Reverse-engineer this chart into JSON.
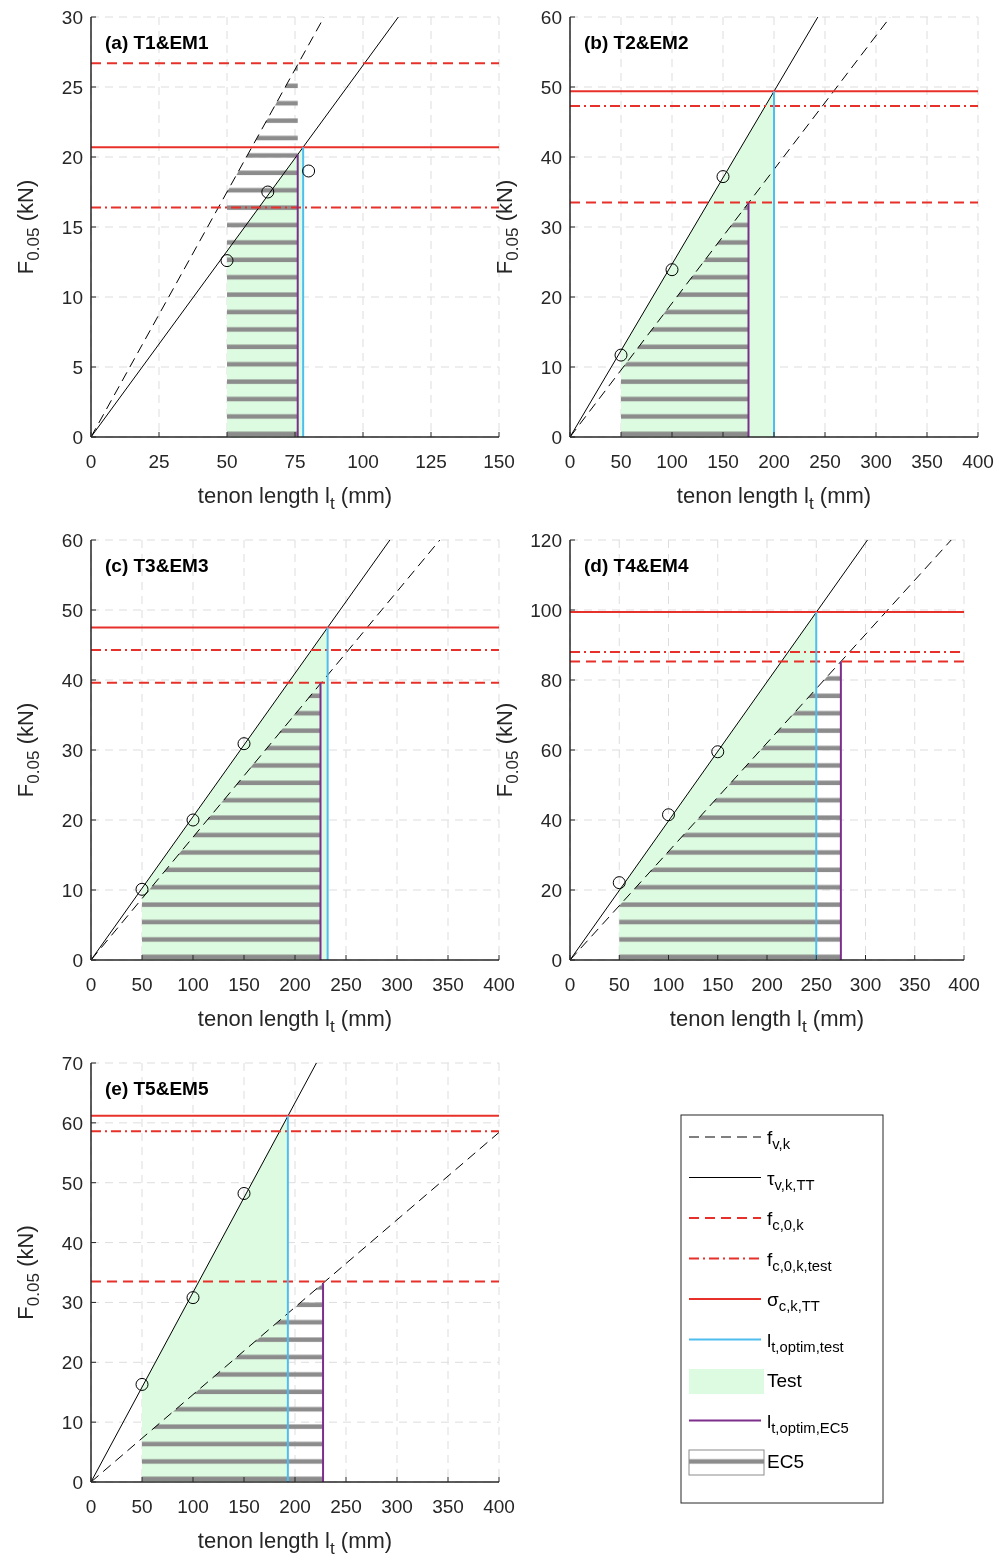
{
  "chart_data": [
    {
      "type": "line",
      "title": "(a) T1&EM1",
      "xlabel": "tenon length l$_{t}$ (mm)",
      "ylabel": "F$_{0.05}$ (kN)",
      "xlim": [
        0,
        150
      ],
      "xticks": [
        0,
        25,
        50,
        75,
        100,
        125,
        150
      ],
      "ylim": [
        0,
        30
      ],
      "yticks": [
        0,
        5,
        10,
        15,
        20,
        25,
        30
      ],
      "grid": true,
      "legend": false,
      "series": [
        {
          "color": "#000000",
          "line_style": "dashed",
          "x": [
            0,
            85.7
          ],
          "values": [
            0,
            30
          ]
        },
        {
          "color": "#000000",
          "line_style": "solid",
          "x": [
            0,
            113
          ],
          "values": [
            0,
            30
          ]
        },
        {
          "color": "#e8302a",
          "line_style": "dashed",
          "x": [
            0,
            150
          ],
          "values": [
            26.7,
            26.7
          ]
        },
        {
          "color": "#e8302a",
          "line_style": "dashdot",
          "x": [
            0,
            150
          ],
          "values": [
            16.4,
            16.4
          ]
        },
        {
          "color": "#e8302a",
          "line_style": "solid",
          "x": [
            0,
            150
          ],
          "values": [
            20.7,
            20.7
          ]
        },
        {
          "color": "#4dbeee",
          "line_style": "solid",
          "x": [
            78,
            78
          ],
          "values": [
            0,
            20.7
          ]
        },
        {
          "type": "area",
          "color": "#dcfbe0",
          "x": [
            50,
            78
          ],
          "values": [
            13.3,
            20.7
          ]
        },
        {
          "color": "#7e2f8e",
          "line_style": "solid",
          "x": [
            76,
            76
          ],
          "values": [
            0,
            20.2
          ]
        },
        {
          "type": "area",
          "color": "#8c8c8c",
          "x": [
            50,
            76
          ],
          "values": [
            17.5,
            26.6
          ]
        },
        {
          "type": "scatter",
          "color": "#000000",
          "marker": "circle",
          "x": [
            50,
            65,
            80
          ],
          "values": [
            12.6,
            17.5,
            19
          ]
        }
      ]
    },
    {
      "type": "line",
      "title": "(b) T2&EM2",
      "xlabel": "tenon length l$_{t}$ (mm)",
      "ylabel": "F$_{0.05}$ (kN)",
      "xlim": [
        0,
        400
      ],
      "xticks": [
        0,
        50,
        100,
        150,
        200,
        250,
        300,
        350,
        400
      ],
      "ylim": [
        0,
        60
      ],
      "yticks": [
        0,
        10,
        20,
        30,
        40,
        50,
        60
      ],
      "grid": true,
      "legend": false,
      "series": [
        {
          "color": "#000000",
          "line_style": "dashed",
          "x": [
            0,
            314
          ],
          "values": [
            0,
            60
          ]
        },
        {
          "color": "#000000",
          "line_style": "solid",
          "x": [
            0,
            243
          ],
          "values": [
            0,
            60
          ]
        },
        {
          "color": "#e8302a",
          "line_style": "dashed",
          "x": [
            0,
            400
          ],
          "values": [
            33.5,
            33.5
          ]
        },
        {
          "color": "#e8302a",
          "line_style": "dashdot",
          "x": [
            0,
            400
          ],
          "values": [
            47.3,
            47.3
          ]
        },
        {
          "color": "#e8302a",
          "line_style": "solid",
          "x": [
            0,
            400
          ],
          "values": [
            49.4,
            49.4
          ]
        },
        {
          "color": "#4dbeee",
          "line_style": "solid",
          "x": [
            200,
            200
          ],
          "values": [
            0,
            49.4
          ]
        },
        {
          "type": "area",
          "color": "#dcfbe0",
          "x": [
            50,
            200
          ],
          "values": [
            12.4,
            49.4
          ]
        },
        {
          "color": "#7e2f8e",
          "line_style": "solid",
          "x": [
            175,
            175
          ],
          "values": [
            0,
            33.5
          ]
        },
        {
          "type": "area",
          "color": "#8c8c8c",
          "x": [
            50,
            175
          ],
          "values": [
            9.6,
            33.5
          ]
        },
        {
          "type": "scatter",
          "color": "#000000",
          "marker": "circle",
          "x": [
            50,
            100,
            150
          ],
          "values": [
            11.7,
            23.9,
            37.2
          ]
        }
      ]
    },
    {
      "type": "line",
      "title": "(c) T3&EM3",
      "xlabel": "tenon length l$_{t}$ (mm)",
      "ylabel": "F$_{0.05}$ (kN)",
      "xlim": [
        0,
        400
      ],
      "xticks": [
        0,
        50,
        100,
        150,
        200,
        250,
        300,
        350,
        400
      ],
      "ylim": [
        0,
        60
      ],
      "yticks": [
        0,
        10,
        20,
        30,
        40,
        50,
        60
      ],
      "grid": true,
      "legend": false,
      "series": [
        {
          "color": "#000000",
          "line_style": "dashed",
          "x": [
            0,
            342
          ],
          "values": [
            0,
            60
          ]
        },
        {
          "color": "#000000",
          "line_style": "solid",
          "x": [
            0,
            293
          ],
          "values": [
            0,
            60
          ]
        },
        {
          "color": "#e8302a",
          "line_style": "dashed",
          "x": [
            0,
            400
          ],
          "values": [
            39.6,
            39.6
          ]
        },
        {
          "color": "#e8302a",
          "line_style": "dashdot",
          "x": [
            0,
            400
          ],
          "values": [
            44.3,
            44.3
          ]
        },
        {
          "color": "#e8302a",
          "line_style": "solid",
          "x": [
            0,
            400
          ],
          "values": [
            47.5,
            47.5
          ]
        },
        {
          "color": "#4dbeee",
          "line_style": "solid",
          "x": [
            232,
            232
          ],
          "values": [
            0,
            47.5
          ]
        },
        {
          "type": "area",
          "color": "#dcfbe0",
          "x": [
            50,
            232
          ],
          "values": [
            10.2,
            47.5
          ]
        },
        {
          "color": "#7e2f8e",
          "line_style": "solid",
          "x": [
            225,
            225
          ],
          "values": [
            0,
            39.6
          ]
        },
        {
          "type": "area",
          "color": "#8c8c8c",
          "x": [
            50,
            225
          ],
          "values": [
            8.8,
            39.6
          ]
        },
        {
          "type": "scatter",
          "color": "#000000",
          "marker": "circle",
          "x": [
            50,
            100,
            150
          ],
          "values": [
            10.1,
            20,
            30.9
          ]
        }
      ]
    },
    {
      "type": "line",
      "title": "(d) T4&EM4",
      "xlabel": "tenon length l$_{t}$ (mm)",
      "ylabel": "F$_{0.05}$ (kN)",
      "xlim": [
        0,
        400
      ],
      "xticks": [
        0,
        50,
        100,
        150,
        200,
        250,
        300,
        350,
        400
      ],
      "ylim": [
        0,
        120
      ],
      "yticks": [
        0,
        20,
        40,
        60,
        80,
        100,
        120
      ],
      "grid": true,
      "legend": false,
      "series": [
        {
          "color": "#000000",
          "line_style": "dashed",
          "x": [
            0,
            387
          ],
          "values": [
            0,
            120
          ]
        },
        {
          "color": "#000000",
          "line_style": "solid",
          "x": [
            0,
            302
          ],
          "values": [
            0,
            120
          ]
        },
        {
          "color": "#e8302a",
          "line_style": "dashed",
          "x": [
            0,
            400
          ],
          "values": [
            85.3,
            85.3
          ]
        },
        {
          "color": "#e8302a",
          "line_style": "dashdot",
          "x": [
            0,
            400
          ],
          "values": [
            88,
            88
          ]
        },
        {
          "color": "#e8302a",
          "line_style": "solid",
          "x": [
            0,
            400
          ],
          "values": [
            99.4,
            99.4
          ]
        },
        {
          "color": "#4dbeee",
          "line_style": "solid",
          "x": [
            250,
            250
          ],
          "values": [
            0,
            99.4
          ]
        },
        {
          "type": "area",
          "color": "#dcfbe0",
          "x": [
            50,
            250
          ],
          "values": [
            19.9,
            99.4
          ]
        },
        {
          "color": "#7e2f8e",
          "line_style": "solid",
          "x": [
            275,
            275
          ],
          "values": [
            0,
            85.3
          ]
        },
        {
          "type": "area",
          "color": "#8c8c8c",
          "x": [
            50,
            275
          ],
          "values": [
            15.5,
            85.3
          ]
        },
        {
          "type": "scatter",
          "color": "#000000",
          "marker": "circle",
          "x": [
            50,
            100,
            150
          ],
          "values": [
            22.1,
            41.5,
            59.5
          ]
        }
      ]
    },
    {
      "type": "line",
      "title": "(e) T5&EM5",
      "xlabel": "tenon length l$_{t}$ (mm)",
      "ylabel": "F$_{0.05}$ (kN)",
      "xlim": [
        0,
        400
      ],
      "xticks": [
        0,
        50,
        100,
        150,
        200,
        250,
        300,
        350,
        400
      ],
      "ylim": [
        0,
        70
      ],
      "yticks": [
        0,
        10,
        20,
        30,
        40,
        50,
        60,
        70
      ],
      "grid": true,
      "legend": "right",
      "series": [
        {
          "name": "f$_{v,k}$",
          "color": "#000000",
          "line_style": "dashed",
          "x": [
            0,
            400
          ],
          "values": [
            0,
            58.4
          ]
        },
        {
          "name": "τ$_{v,k,TT}$",
          "color": "#000000",
          "line_style": "solid",
          "x": [
            0,
            221
          ],
          "values": [
            0,
            70
          ]
        },
        {
          "name": "f$_{c,0,k}$",
          "color": "#e8302a",
          "line_style": "dashed",
          "x": [
            0,
            400
          ],
          "values": [
            33.5,
            33.5
          ]
        },
        {
          "name": "f$_{c,0,k,test}$",
          "color": "#e8302a",
          "line_style": "dashdot",
          "x": [
            0,
            400
          ],
          "values": [
            58.6,
            58.6
          ]
        },
        {
          "name": "σ$_{c,k,TT}$",
          "color": "#e8302a",
          "line_style": "solid",
          "x": [
            0,
            400
          ],
          "values": [
            61.2,
            61.2
          ]
        },
        {
          "name": "l$_{t,optim,test}$",
          "color": "#4dbeee",
          "line_style": "solid",
          "x": [
            193,
            193
          ],
          "values": [
            0,
            61.2
          ]
        },
        {
          "name": "Test",
          "type": "area",
          "color": "#dcfbe0",
          "x": [
            50,
            193
          ],
          "values": [
            15.9,
            61.2
          ]
        },
        {
          "name": "l$_{t,optim,EC5}$",
          "color": "#7e2f8e",
          "line_style": "solid",
          "x": [
            227.5,
            227.5
          ],
          "values": [
            0,
            33.2
          ]
        },
        {
          "name": "EC5",
          "type": "area",
          "color": "#8c8c8c",
          "x": [
            50,
            227.5
          ],
          "values": [
            7.3,
            33.2
          ]
        },
        {
          "type": "scatter",
          "color": "#000000",
          "marker": "circle",
          "x": [
            50,
            100,
            150
          ],
          "values": [
            16.3,
            30.8,
            48.2
          ]
        }
      ]
    }
  ]
}
